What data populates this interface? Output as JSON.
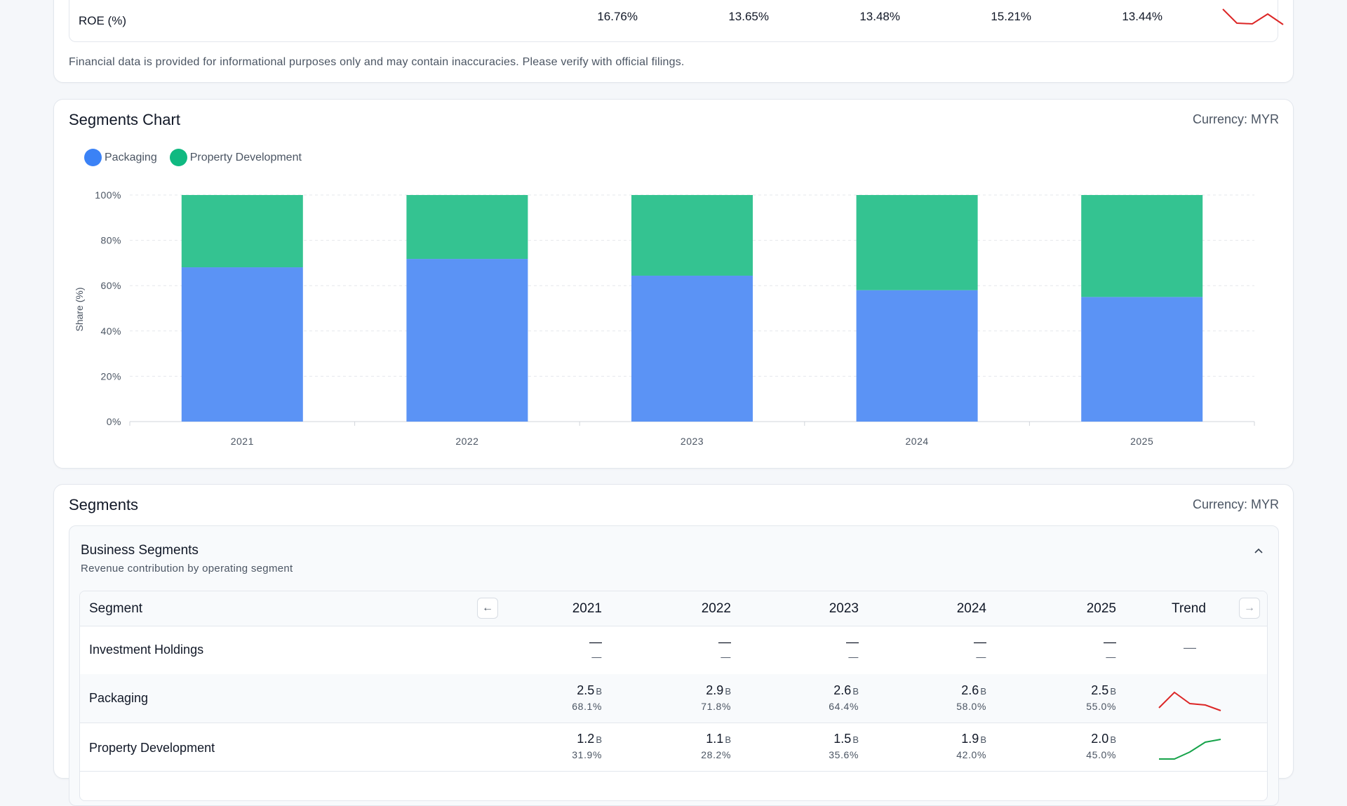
{
  "roe": {
    "label": "ROE (%)",
    "values": [
      "16.76%",
      "13.65%",
      "13.48%",
      "15.21%",
      "13.44%"
    ],
    "trend_color": "#dc2626"
  },
  "disclaimer": "Financial data is provided for informational purposes only and may contain inaccuracies. Please verify with official filings.",
  "segments_chart": {
    "title": "Segments Chart",
    "currency": "Currency: MYR"
  },
  "chart_data": {
    "type": "bar",
    "stacked": true,
    "categories": [
      "2021",
      "2022",
      "2023",
      "2024",
      "2025"
    ],
    "series": [
      {
        "name": "Packaging",
        "color": "#5b93f5",
        "values": [
          68.1,
          71.8,
          64.4,
          58.0,
          55.0
        ]
      },
      {
        "name": "Property Development",
        "color": "#34c391",
        "values": [
          31.9,
          28.2,
          35.6,
          42.0,
          45.0
        ]
      }
    ],
    "ylabel": "Share (%)",
    "ylim": [
      0,
      100
    ],
    "yticks": [
      "0%",
      "20%",
      "40%",
      "60%",
      "80%",
      "100%"
    ],
    "grid": true,
    "legend": "top-left"
  },
  "legend_colors": {
    "packaging": "#3b82f6",
    "property": "#10b981"
  },
  "segments": {
    "title": "Segments",
    "currency": "Currency: MYR",
    "panel_title": "Business Segments",
    "panel_subtitle": "Revenue contribution by operating segment",
    "header": {
      "segment": "Segment",
      "years": [
        "2021",
        "2022",
        "2023",
        "2024",
        "2025"
      ],
      "trend": "Trend"
    },
    "rows": [
      {
        "name": "Investment Holdings",
        "cells": [
          {
            "v": "—",
            "u": "",
            "p": "—"
          },
          {
            "v": "—",
            "u": "",
            "p": "—"
          },
          {
            "v": "—",
            "u": "",
            "p": "—"
          },
          {
            "v": "—",
            "u": "",
            "p": "—"
          },
          {
            "v": "—",
            "u": "",
            "p": "—"
          }
        ],
        "trend": "—"
      },
      {
        "name": "Packaging",
        "cells": [
          {
            "v": "2.5",
            "u": "B",
            "p": "68.1%"
          },
          {
            "v": "2.9",
            "u": "B",
            "p": "71.8%"
          },
          {
            "v": "2.6",
            "u": "B",
            "p": "64.4%"
          },
          {
            "v": "2.6",
            "u": "B",
            "p": "58.0%"
          },
          {
            "v": "2.5",
            "u": "B",
            "p": "55.0%"
          }
        ],
        "trend_color": "#dc2626"
      },
      {
        "name": "Property Development",
        "cells": [
          {
            "v": "1.2",
            "u": "B",
            "p": "31.9%"
          },
          {
            "v": "1.1",
            "u": "B",
            "p": "28.2%"
          },
          {
            "v": "1.5",
            "u": "B",
            "p": "35.6%"
          },
          {
            "v": "1.9",
            "u": "B",
            "p": "42.0%"
          },
          {
            "v": "2.0",
            "u": "B",
            "p": "45.0%"
          }
        ],
        "trend_color": "#16a34a"
      }
    ]
  }
}
